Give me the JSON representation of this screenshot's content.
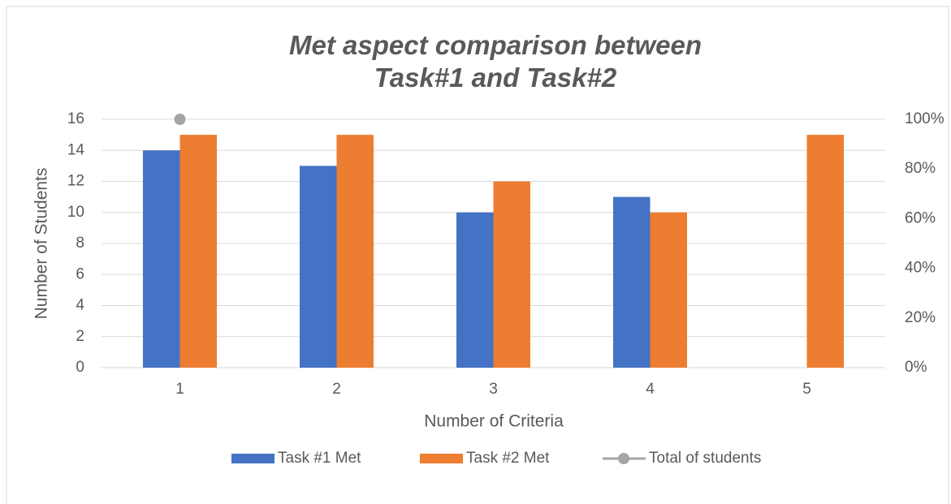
{
  "chart_data": {
    "type": "bar",
    "title": "Met aspect comparison between Task#1 and Task#2",
    "x_label": "Number of Criteria",
    "y_label": "Number of Students",
    "categories": [
      "1",
      "2",
      "3",
      "4",
      "5"
    ],
    "series": [
      {
        "name": "Task #1 Met",
        "color": "#4472c4",
        "values": [
          14,
          13,
          10,
          11,
          null
        ]
      },
      {
        "name": "Task #2 Met",
        "color": "#ed7d31",
        "values": [
          15,
          15,
          12,
          10,
          15
        ]
      },
      {
        "name": "Total of students",
        "color": "#a5a5a5",
        "type": "line",
        "axis": "y2",
        "values": [
          100,
          null,
          null,
          null,
          null
        ]
      }
    ],
    "ylim": [
      0,
      16
    ],
    "yticks": [
      0,
      2,
      4,
      6,
      8,
      10,
      12,
      14,
      16
    ],
    "y2lim": [
      0,
      100
    ],
    "y2ticks": [
      {
        "value": 0,
        "label": "0%"
      },
      {
        "value": 20,
        "label": "20%"
      },
      {
        "value": 40,
        "label": "40%"
      },
      {
        "value": 60,
        "label": "60%"
      },
      {
        "value": 80,
        "label": "80%"
      },
      {
        "value": 100,
        "label": "100%"
      }
    ],
    "grid": true,
    "legend": "bottom"
  }
}
